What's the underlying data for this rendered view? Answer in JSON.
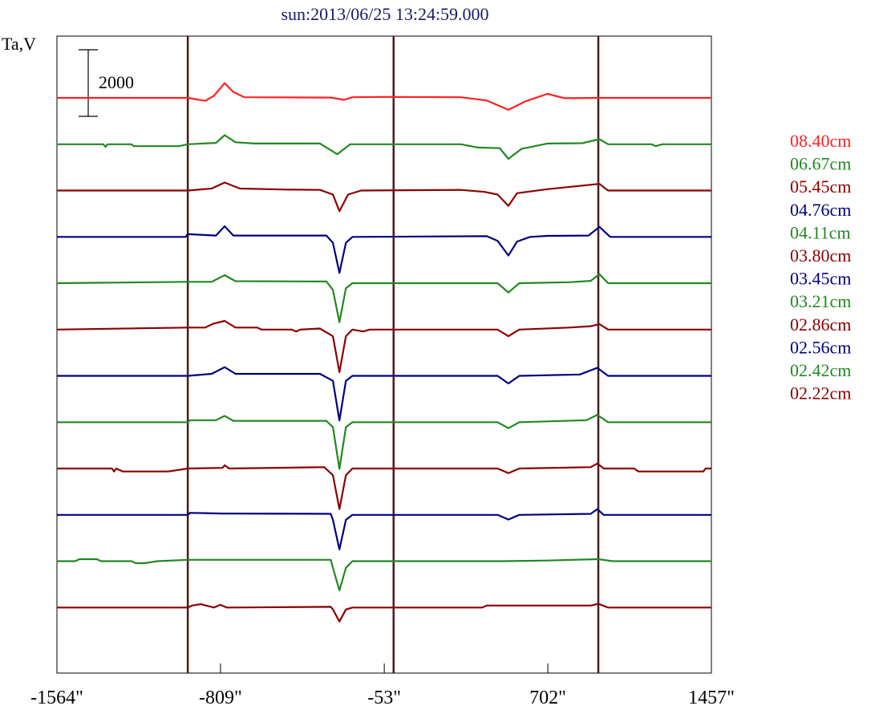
{
  "chart_data": {
    "type": "line",
    "title": "sun:2013/06/25 13:24:59.000",
    "ylabel": "Ta,V",
    "scale_bar_label": "2000",
    "xlim": [
      -1564,
      1457
    ],
    "x_ticks": [
      {
        "value": -1564,
        "label": "-1564\""
      },
      {
        "value": -809,
        "label": "-809\""
      },
      {
        "value": -53,
        "label": "-53\""
      },
      {
        "value": 702,
        "label": "702\""
      },
      {
        "value": 1457,
        "label": "1457\""
      }
    ],
    "vertical_markers": [
      -960,
      -10,
      935
    ],
    "series": [
      {
        "name": "08.40cm",
        "color": "#ff2020",
        "points": [
          [
            -1564,
            0
          ],
          [
            -960,
            0
          ],
          [
            -880,
            -90
          ],
          [
            -840,
            60
          ],
          [
            -790,
            440
          ],
          [
            -750,
            180
          ],
          [
            -700,
            20
          ],
          [
            -300,
            10
          ],
          [
            -240,
            -60
          ],
          [
            -200,
            20
          ],
          [
            -50,
            30
          ],
          [
            300,
            20
          ],
          [
            420,
            -80
          ],
          [
            520,
            -360
          ],
          [
            600,
            -100
          ],
          [
            700,
            120
          ],
          [
            780,
            -10
          ],
          [
            940,
            0
          ],
          [
            1457,
            0
          ]
        ]
      },
      {
        "name": "06.67cm",
        "color": "#228822",
        "points": [
          [
            -1564,
            0
          ],
          [
            -1350,
            0
          ],
          [
            -1340,
            -80
          ],
          [
            -1330,
            0
          ],
          [
            -1220,
            0
          ],
          [
            -1210,
            -60
          ],
          [
            -1000,
            -60
          ],
          [
            -960,
            0
          ],
          [
            -830,
            40
          ],
          [
            -790,
            270
          ],
          [
            -740,
            60
          ],
          [
            -650,
            20
          ],
          [
            -350,
            20
          ],
          [
            -270,
            -300
          ],
          [
            -210,
            0
          ],
          [
            300,
            0
          ],
          [
            380,
            -100
          ],
          [
            480,
            -120
          ],
          [
            520,
            -440
          ],
          [
            580,
            -140
          ],
          [
            700,
            20
          ],
          [
            860,
            30
          ],
          [
            940,
            150
          ],
          [
            980,
            0
          ],
          [
            1180,
            0
          ],
          [
            1200,
            -60
          ],
          [
            1230,
            0
          ],
          [
            1457,
            0
          ]
        ]
      },
      {
        "name": "05.45cm",
        "color": "#8b0000",
        "points": [
          [
            -1564,
            0
          ],
          [
            -960,
            0
          ],
          [
            -850,
            60
          ],
          [
            -790,
            240
          ],
          [
            -720,
            60
          ],
          [
            -500,
            30
          ],
          [
            -350,
            20
          ],
          [
            -290,
            -120
          ],
          [
            -260,
            -620
          ],
          [
            -220,
            -120
          ],
          [
            -160,
            0
          ],
          [
            300,
            20
          ],
          [
            410,
            -40
          ],
          [
            470,
            -120
          ],
          [
            520,
            -460
          ],
          [
            560,
            -80
          ],
          [
            700,
            40
          ],
          [
            940,
            200
          ],
          [
            980,
            0
          ],
          [
            1457,
            0
          ]
        ]
      },
      {
        "name": "04.76cm",
        "color": "#000080",
        "points": [
          [
            -1564,
            0
          ],
          [
            -970,
            0
          ],
          [
            -960,
            80
          ],
          [
            -830,
            40
          ],
          [
            -790,
            320
          ],
          [
            -750,
            40
          ],
          [
            -320,
            40
          ],
          [
            -290,
            -180
          ],
          [
            -260,
            -1080
          ],
          [
            -230,
            -180
          ],
          [
            -200,
            0
          ],
          [
            420,
            20
          ],
          [
            470,
            -120
          ],
          [
            520,
            -560
          ],
          [
            560,
            -140
          ],
          [
            620,
            0
          ],
          [
            700,
            30
          ],
          [
            890,
            40
          ],
          [
            940,
            300
          ],
          [
            990,
            0
          ],
          [
            1457,
            0
          ]
        ]
      },
      {
        "name": "04.11cm",
        "color": "#228822",
        "points": [
          [
            -1564,
            0
          ],
          [
            -960,
            40
          ],
          [
            -850,
            40
          ],
          [
            -790,
            240
          ],
          [
            -740,
            60
          ],
          [
            -320,
            50
          ],
          [
            -290,
            -200
          ],
          [
            -260,
            -1170
          ],
          [
            -230,
            -150
          ],
          [
            -200,
            0
          ],
          [
            470,
            0
          ],
          [
            520,
            -280
          ],
          [
            570,
            0
          ],
          [
            800,
            30
          ],
          [
            900,
            70
          ],
          [
            940,
            270
          ],
          [
            980,
            0
          ],
          [
            1457,
            0
          ]
        ]
      },
      {
        "name": "03.80cm",
        "color": "#8b0000",
        "points": [
          [
            -1564,
            0
          ],
          [
            -960,
            60
          ],
          [
            -880,
            60
          ],
          [
            -840,
            180
          ],
          [
            -790,
            260
          ],
          [
            -740,
            60
          ],
          [
            -640,
            60
          ],
          [
            -620,
            0
          ],
          [
            -480,
            0
          ],
          [
            -460,
            -60
          ],
          [
            -440,
            0
          ],
          [
            -350,
            30
          ],
          [
            -290,
            -200
          ],
          [
            -260,
            -1280
          ],
          [
            -230,
            -200
          ],
          [
            -200,
            0
          ],
          [
            -150,
            -60
          ],
          [
            -120,
            0
          ],
          [
            470,
            0
          ],
          [
            520,
            -200
          ],
          [
            570,
            0
          ],
          [
            800,
            60
          ],
          [
            900,
            100
          ],
          [
            940,
            160
          ],
          [
            980,
            0
          ],
          [
            1457,
            0
          ]
        ]
      },
      {
        "name": "03.45cm",
        "color": "#000080",
        "points": [
          [
            -1564,
            0
          ],
          [
            -960,
            0
          ],
          [
            -850,
            60
          ],
          [
            -790,
            260
          ],
          [
            -740,
            60
          ],
          [
            -350,
            60
          ],
          [
            -290,
            -150
          ],
          [
            -260,
            -1340
          ],
          [
            -230,
            -150
          ],
          [
            -200,
            0
          ],
          [
            470,
            0
          ],
          [
            520,
            -230
          ],
          [
            570,
            0
          ],
          [
            850,
            40
          ],
          [
            930,
            240
          ],
          [
            980,
            0
          ],
          [
            1457,
            0
          ]
        ]
      },
      {
        "name": "03.21cm",
        "color": "#228822",
        "points": [
          [
            -1564,
            0
          ],
          [
            -960,
            0
          ],
          [
            -950,
            60
          ],
          [
            -830,
            60
          ],
          [
            -790,
            190
          ],
          [
            -750,
            40
          ],
          [
            -320,
            40
          ],
          [
            -290,
            -150
          ],
          [
            -260,
            -1400
          ],
          [
            -230,
            -150
          ],
          [
            -200,
            0
          ],
          [
            470,
            0
          ],
          [
            520,
            -180
          ],
          [
            570,
            0
          ],
          [
            880,
            60
          ],
          [
            930,
            220
          ],
          [
            980,
            0
          ],
          [
            1457,
            0
          ]
        ]
      },
      {
        "name": "02.86cm",
        "color": "#8b0000",
        "points": [
          [
            -1564,
            0
          ],
          [
            -1310,
            0
          ],
          [
            -1300,
            -90
          ],
          [
            -1290,
            0
          ],
          [
            -1260,
            -90
          ],
          [
            -1050,
            -90
          ],
          [
            -960,
            0
          ],
          [
            -800,
            20
          ],
          [
            -790,
            100
          ],
          [
            -770,
            0
          ],
          [
            -330,
            40
          ],
          [
            -290,
            -200
          ],
          [
            -260,
            -1220
          ],
          [
            -230,
            -200
          ],
          [
            -200,
            0
          ],
          [
            470,
            0
          ],
          [
            520,
            -140
          ],
          [
            570,
            0
          ],
          [
            900,
            40
          ],
          [
            930,
            150
          ],
          [
            960,
            0
          ],
          [
            1100,
            0
          ],
          [
            1120,
            -90
          ],
          [
            1420,
            -90
          ],
          [
            1430,
            0
          ],
          [
            1457,
            0
          ]
        ]
      },
      {
        "name": "02.56cm",
        "color": "#000080",
        "points": [
          [
            -1564,
            0
          ],
          [
            -960,
            0
          ],
          [
            -950,
            60
          ],
          [
            -800,
            40
          ],
          [
            -300,
            30
          ],
          [
            -290,
            -150
          ],
          [
            -260,
            -1040
          ],
          [
            -230,
            -150
          ],
          [
            -200,
            0
          ],
          [
            470,
            0
          ],
          [
            520,
            -140
          ],
          [
            570,
            0
          ],
          [
            900,
            30
          ],
          [
            930,
            170
          ],
          [
            960,
            0
          ],
          [
            1457,
            0
          ]
        ]
      },
      {
        "name": "02.42cm",
        "color": "#228822",
        "points": [
          [
            -1564,
            0
          ],
          [
            -1480,
            0
          ],
          [
            -1460,
            60
          ],
          [
            -1380,
            60
          ],
          [
            -1360,
            0
          ],
          [
            -1220,
            0
          ],
          [
            -1200,
            -60
          ],
          [
            -1160,
            -60
          ],
          [
            -1100,
            0
          ],
          [
            -960,
            40
          ],
          [
            -300,
            40
          ],
          [
            -290,
            -200
          ],
          [
            -260,
            -880
          ],
          [
            -230,
            -200
          ],
          [
            -200,
            0
          ],
          [
            500,
            0
          ],
          [
            700,
            20
          ],
          [
            935,
            60
          ],
          [
            1000,
            0
          ],
          [
            1457,
            0
          ]
        ]
      },
      {
        "name": "02.22cm",
        "color": "#8b0000",
        "points": [
          [
            -1564,
            0
          ],
          [
            -960,
            0
          ],
          [
            -940,
            60
          ],
          [
            -900,
            100
          ],
          [
            -840,
            0
          ],
          [
            -810,
            80
          ],
          [
            -780,
            0
          ],
          [
            -300,
            20
          ],
          [
            -290,
            -60
          ],
          [
            -260,
            -420
          ],
          [
            -230,
            -60
          ],
          [
            -200,
            0
          ],
          [
            400,
            0
          ],
          [
            420,
            60
          ],
          [
            900,
            60
          ],
          [
            935,
            110
          ],
          [
            980,
            0
          ],
          [
            1457,
            0
          ]
        ]
      }
    ]
  }
}
